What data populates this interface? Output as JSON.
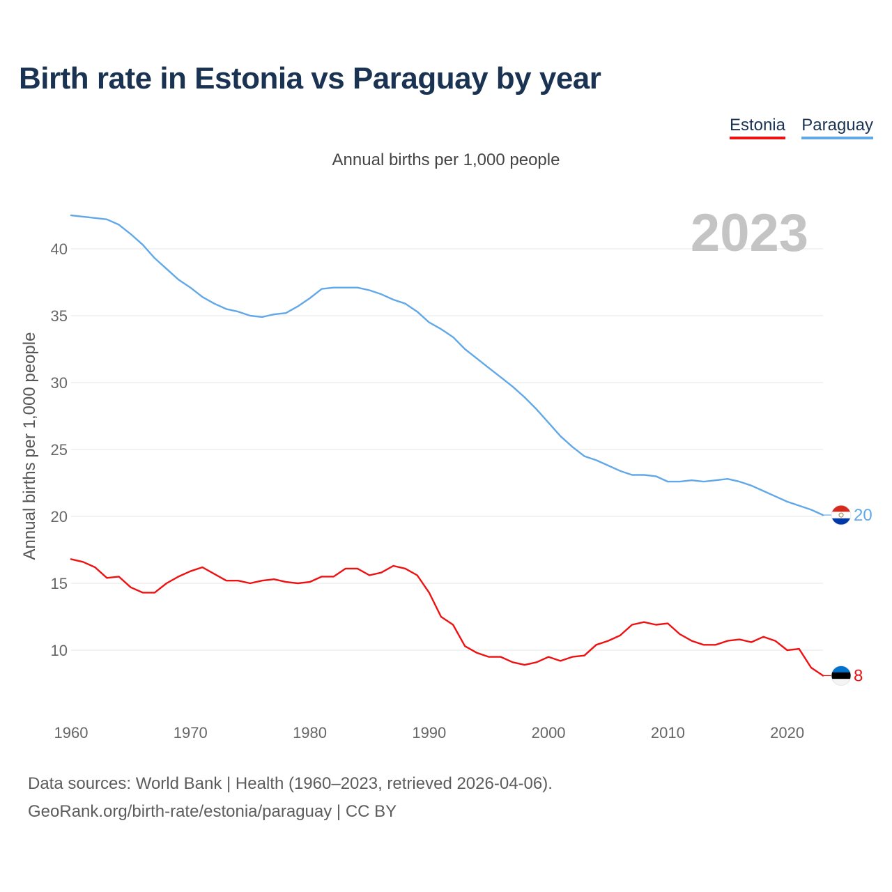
{
  "title": "Birth rate in Estonia vs Paraguay by year",
  "subtitle": "Annual births per 1,000 people",
  "legend": [
    {
      "label": "Estonia",
      "color": "#ee1111"
    },
    {
      "label": "Paraguay",
      "color": "#62a8e8"
    }
  ],
  "year_label": "2023",
  "footer": {
    "line1": "Data sources: World Bank | Health (1960–2023, retrieved 2026-04-06).",
    "line2": "GeoRank.org/birth-rate/estonia/paraguay | CC BY"
  },
  "chart_data": {
    "type": "line",
    "title": "Birth rate in Estonia vs Paraguay by year",
    "ylabel": "Annual births per 1,000 people",
    "xlabel": "",
    "xlim": [
      1960,
      2023
    ],
    "ylim": [
      7,
      43
    ],
    "x_ticks": [
      1960,
      1970,
      1980,
      1990,
      2000,
      2010,
      2020
    ],
    "y_ticks": [
      10,
      15,
      20,
      25,
      30,
      35,
      40
    ],
    "grid": true,
    "legend_position": "top-right",
    "x": [
      1960,
      1961,
      1962,
      1963,
      1964,
      1965,
      1966,
      1967,
      1968,
      1969,
      1970,
      1971,
      1972,
      1973,
      1974,
      1975,
      1976,
      1977,
      1978,
      1979,
      1980,
      1981,
      1982,
      1983,
      1984,
      1985,
      1986,
      1987,
      1988,
      1989,
      1990,
      1991,
      1992,
      1993,
      1994,
      1995,
      1996,
      1997,
      1998,
      1999,
      2000,
      2001,
      2002,
      2003,
      2004,
      2005,
      2006,
      2007,
      2008,
      2009,
      2010,
      2011,
      2012,
      2013,
      2014,
      2015,
      2016,
      2017,
      2018,
      2019,
      2020,
      2021,
      2022,
      2023
    ],
    "series": [
      {
        "name": "Paraguay",
        "color": "#62a8e8",
        "end_label": "20",
        "values": [
          42.5,
          42.4,
          42.3,
          42.2,
          41.8,
          41.1,
          40.3,
          39.3,
          38.5,
          37.7,
          37.1,
          36.4,
          35.9,
          35.5,
          35.3,
          35.0,
          34.9,
          35.1,
          35.2,
          35.7,
          36.3,
          37.0,
          37.1,
          37.1,
          37.1,
          36.9,
          36.6,
          36.2,
          35.9,
          35.3,
          34.5,
          34.0,
          33.4,
          32.5,
          31.8,
          31.1,
          30.4,
          29.7,
          28.9,
          28.0,
          27.0,
          26.0,
          25.2,
          24.5,
          24.2,
          23.8,
          23.4,
          23.1,
          23.1,
          23.0,
          22.6,
          22.6,
          22.7,
          22.6,
          22.7,
          22.8,
          22.6,
          22.3,
          21.9,
          21.5,
          21.1,
          20.8,
          20.5,
          20.1
        ]
      },
      {
        "name": "Estonia",
        "color": "#ee1111",
        "end_label": "8",
        "values": [
          16.8,
          16.6,
          16.2,
          15.4,
          15.5,
          14.7,
          14.3,
          14.3,
          15.0,
          15.5,
          15.9,
          16.2,
          15.7,
          15.2,
          15.2,
          15.0,
          15.2,
          15.3,
          15.1,
          15.0,
          15.1,
          15.5,
          15.5,
          16.1,
          16.1,
          15.6,
          15.8,
          16.3,
          16.1,
          15.6,
          14.3,
          12.5,
          11.9,
          10.3,
          9.8,
          9.5,
          9.5,
          9.1,
          8.9,
          9.1,
          9.5,
          9.2,
          9.5,
          9.6,
          10.4,
          10.7,
          11.1,
          11.9,
          12.1,
          11.9,
          12.0,
          11.2,
          10.7,
          10.4,
          10.4,
          10.7,
          10.8,
          10.6,
          11.0,
          10.7,
          10.0,
          10.1,
          8.7,
          8.1
        ]
      }
    ]
  }
}
